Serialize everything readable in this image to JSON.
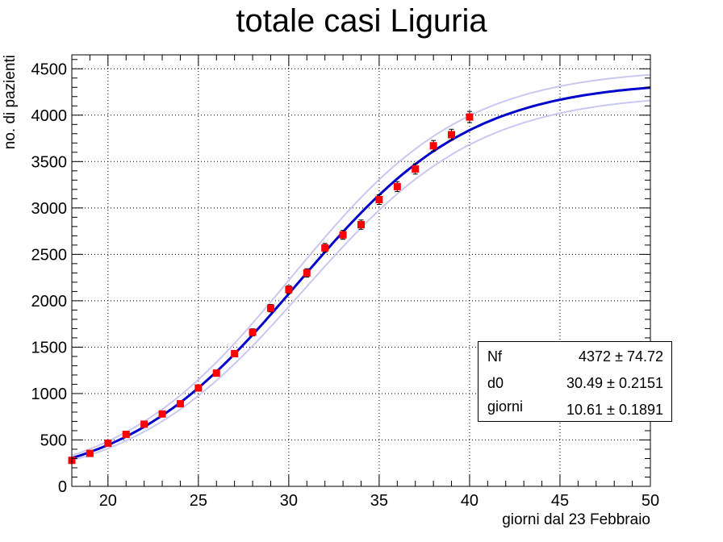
{
  "title": "totale casi Liguria",
  "chart_data": {
    "type": "scatter",
    "title": "totale casi Liguria",
    "xlabel": "giorni dal 23 Febbraio",
    "ylabel": "no. di pazienti",
    "xlim": [
      18,
      50
    ],
    "ylim": [
      0,
      4650
    ],
    "xticks": [
      20,
      25,
      30,
      35,
      40,
      45,
      50
    ],
    "yticks": [
      0,
      500,
      1000,
      1500,
      2000,
      2500,
      3000,
      3500,
      4000,
      4500
    ],
    "grid": true,
    "series": [
      {
        "kind": "points",
        "color": "#ff0000",
        "x": [
          18,
          19,
          20,
          21,
          22,
          23,
          24,
          25,
          26,
          27,
          28,
          29,
          30,
          31,
          32,
          33,
          34,
          35,
          36,
          37,
          38,
          39,
          40
        ],
        "y": [
          280,
          355,
          465,
          560,
          670,
          780,
          890,
          1060,
          1220,
          1430,
          1660,
          1920,
          2120,
          2300,
          2570,
          2710,
          2820,
          3090,
          3230,
          3420,
          3670,
          3790,
          3980
        ],
        "err": [
          15,
          18,
          20,
          22,
          24,
          26,
          28,
          30,
          32,
          35,
          38,
          40,
          42,
          45,
          47,
          48,
          50,
          52,
          53,
          55,
          57,
          58,
          60
        ]
      },
      {
        "kind": "fit",
        "model": "logistic",
        "color": "#0000cc",
        "band_color": "#c8c8f0",
        "Nf": 4372,
        "Nf_err": 74.72,
        "d0": 30.49,
        "d0_err": 0.2151,
        "giorni": 10.61,
        "giorni_err": 0.1891
      }
    ],
    "stats": [
      {
        "name": "Nf",
        "value": "4372",
        "error": "74.72"
      },
      {
        "name": "d0",
        "value": "30.49",
        "error": "0.2151"
      },
      {
        "name": "giorni",
        "value": "10.61",
        "error": "0.1891"
      }
    ],
    "legend_position": "bottom-right"
  }
}
